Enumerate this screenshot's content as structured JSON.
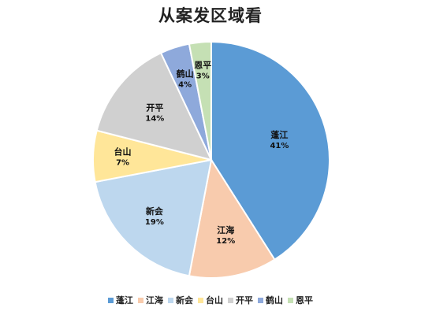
{
  "chart_data": {
    "type": "pie",
    "title": "从案发区域看",
    "categories": [
      "蓬江",
      "江海",
      "新会",
      "台山",
      "开平",
      "鹤山",
      "恩平"
    ],
    "values": [
      41,
      12,
      19,
      7,
      14,
      4,
      3
    ],
    "labels": [
      "41%",
      "12%",
      "19%",
      "7%",
      "14%",
      "4%",
      "3%"
    ],
    "colors": [
      "#5B9BD5",
      "#F8CBAD",
      "#BDD7EE",
      "#FFE699",
      "#D0D0D0",
      "#8EA9DB",
      "#C5E0B4"
    ],
    "start": "12 o'clock",
    "direction": "clockwise",
    "legend_position": "bottom"
  }
}
